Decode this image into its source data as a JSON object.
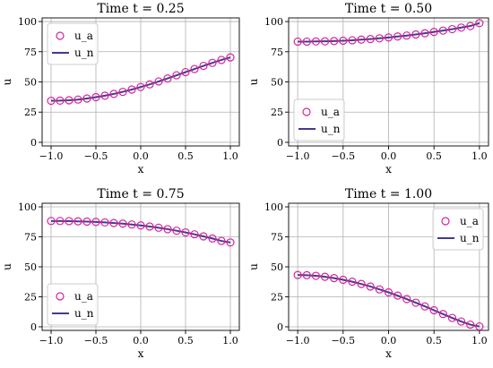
{
  "figure": {
    "legend_labels": {
      "analytic": "u_a",
      "numerical": "u_n"
    },
    "colors": {
      "analytic_marker": "#d9239a",
      "numerical_line": "#433a8f",
      "grid": "#b0b0b0",
      "axes": "#000000",
      "legend_border": "#cccccc"
    }
  },
  "chart_data": [
    {
      "type": "line",
      "title": "Time t = 0.25",
      "xlabel": "x",
      "ylabel": "u",
      "xlim": [
        -1.1,
        1.1
      ],
      "ylim": [
        -3,
        103
      ],
      "xticks": [
        -1.0,
        -0.5,
        0.0,
        0.5,
        1.0
      ],
      "xtick_labels": [
        "−1.0",
        "−0.5",
        "0.0",
        "0.5",
        "1.0"
      ],
      "yticks": [
        0,
        25,
        50,
        75,
        100
      ],
      "ytick_labels": [
        "0",
        "25",
        "50",
        "75",
        "100"
      ],
      "grid": true,
      "legend_position": "upper-left",
      "x": [
        -1.0,
        -0.9,
        -0.8,
        -0.7,
        -0.6,
        -0.5,
        -0.4,
        -0.3,
        -0.2,
        -0.1,
        0.0,
        0.1,
        0.2,
        0.3,
        0.4,
        0.5,
        0.6,
        0.7,
        0.8,
        0.9,
        1.0
      ],
      "series": [
        {
          "name": "u_a",
          "style": "markers",
          "values": [
            34.4,
            34.5,
            34.8,
            35.4,
            36.3,
            37.4,
            38.6,
            40.1,
            41.8,
            43.7,
            45.8,
            48.0,
            50.4,
            52.9,
            55.5,
            58.1,
            60.7,
            63.3,
            65.8,
            68.2,
            70.3
          ]
        },
        {
          "name": "u_n",
          "style": "line",
          "values": [
            34.4,
            34.5,
            34.8,
            35.4,
            36.3,
            37.4,
            38.6,
            40.1,
            41.8,
            43.7,
            45.8,
            48.0,
            50.4,
            52.9,
            55.5,
            58.1,
            60.7,
            63.3,
            65.8,
            68.2,
            70.3
          ]
        }
      ]
    },
    {
      "type": "line",
      "title": "Time t = 0.50",
      "xlabel": "x",
      "ylabel": "u",
      "xlim": [
        -1.1,
        1.1
      ],
      "ylim": [
        -3,
        103
      ],
      "xticks": [
        -1.0,
        -0.5,
        0.0,
        0.5,
        1.0
      ],
      "xtick_labels": [
        "−1.0",
        "−0.5",
        "0.0",
        "0.5",
        "1.0"
      ],
      "yticks": [
        0,
        25,
        50,
        75,
        100
      ],
      "ytick_labels": [
        "0",
        "25",
        "50",
        "75",
        "100"
      ],
      "grid": true,
      "legend_position": "lower-left",
      "x": [
        -1.0,
        -0.9,
        -0.8,
        -0.7,
        -0.6,
        -0.5,
        -0.4,
        -0.3,
        -0.2,
        -0.1,
        0.0,
        0.1,
        0.2,
        0.3,
        0.4,
        0.5,
        0.6,
        0.7,
        0.8,
        0.9,
        1.0
      ],
      "series": [
        {
          "name": "u_a",
          "style": "markers",
          "values": [
            83.4,
            83.4,
            83.5,
            83.6,
            83.8,
            84.1,
            84.5,
            85.0,
            85.5,
            86.1,
            86.8,
            87.6,
            88.4,
            89.3,
            90.3,
            91.4,
            92.5,
            93.7,
            95.0,
            96.3,
            98.7
          ]
        },
        {
          "name": "u_n",
          "style": "line",
          "values": [
            83.4,
            83.4,
            83.5,
            83.6,
            83.8,
            84.1,
            84.5,
            85.0,
            85.5,
            86.1,
            86.8,
            87.6,
            88.4,
            89.3,
            90.3,
            91.4,
            92.5,
            93.7,
            95.0,
            96.3,
            98.7
          ]
        }
      ]
    },
    {
      "type": "line",
      "title": "Time t = 0.75",
      "xlabel": "x",
      "ylabel": "u",
      "xlim": [
        -1.1,
        1.1
      ],
      "ylim": [
        -3,
        103
      ],
      "xticks": [
        -1.0,
        -0.5,
        0.0,
        0.5,
        1.0
      ],
      "xtick_labels": [
        "−1.0",
        "−0.5",
        "0.0",
        "0.5",
        "1.0"
      ],
      "yticks": [
        0,
        25,
        50,
        75,
        100
      ],
      "ytick_labels": [
        "0",
        "25",
        "50",
        "75",
        "100"
      ],
      "grid": true,
      "legend_position": "lower-left",
      "x": [
        -1.0,
        -0.9,
        -0.8,
        -0.7,
        -0.6,
        -0.5,
        -0.4,
        -0.3,
        -0.2,
        -0.1,
        0.0,
        0.1,
        0.2,
        0.3,
        0.4,
        0.5,
        0.6,
        0.7,
        0.8,
        0.9,
        1.0
      ],
      "series": [
        {
          "name": "u_a",
          "style": "markers",
          "values": [
            88.2,
            88.2,
            88.1,
            87.9,
            87.7,
            87.4,
            87.0,
            86.5,
            86.0,
            85.3,
            84.5,
            83.6,
            82.6,
            81.4,
            80.1,
            78.7,
            77.1,
            75.4,
            73.6,
            71.6,
            70.3
          ]
        },
        {
          "name": "u_n",
          "style": "line",
          "values": [
            88.2,
            88.2,
            88.1,
            87.9,
            87.7,
            87.4,
            87.0,
            86.5,
            86.0,
            85.3,
            84.5,
            83.6,
            82.6,
            81.4,
            80.1,
            78.7,
            77.1,
            75.4,
            73.6,
            71.6,
            70.3
          ]
        }
      ]
    },
    {
      "type": "line",
      "title": "Time t = 1.00",
      "xlabel": "x",
      "ylabel": "u",
      "xlim": [
        -1.1,
        1.1
      ],
      "ylim": [
        -3,
        103
      ],
      "xticks": [
        -1.0,
        -0.5,
        0.0,
        0.5,
        1.0
      ],
      "xtick_labels": [
        "−1.0",
        "−0.5",
        "0.0",
        "0.5",
        "1.0"
      ],
      "yticks": [
        0,
        25,
        50,
        75,
        100
      ],
      "ytick_labels": [
        "0",
        "25",
        "50",
        "75",
        "100"
      ],
      "grid": true,
      "legend_position": "upper-right",
      "x": [
        -1.0,
        -0.9,
        -0.8,
        -0.7,
        -0.6,
        -0.5,
        -0.4,
        -0.3,
        -0.2,
        -0.1,
        0.0,
        0.1,
        0.2,
        0.3,
        0.4,
        0.5,
        0.6,
        0.7,
        0.8,
        0.9,
        1.0
      ],
      "series": [
        {
          "name": "u_a",
          "style": "markers",
          "values": [
            43.2,
            43.0,
            42.5,
            41.7,
            40.6,
            39.2,
            37.6,
            35.7,
            33.6,
            31.2,
            28.7,
            26.0,
            23.1,
            20.1,
            17.0,
            13.8,
            10.6,
            7.4,
            4.4,
            1.8,
            0.3
          ]
        },
        {
          "name": "u_n",
          "style": "line",
          "values": [
            43.2,
            43.0,
            42.5,
            41.7,
            40.6,
            39.2,
            37.6,
            35.7,
            33.6,
            31.2,
            28.7,
            26.0,
            23.1,
            20.1,
            17.0,
            13.8,
            10.6,
            7.4,
            4.4,
            1.8,
            0.3
          ]
        }
      ]
    }
  ]
}
